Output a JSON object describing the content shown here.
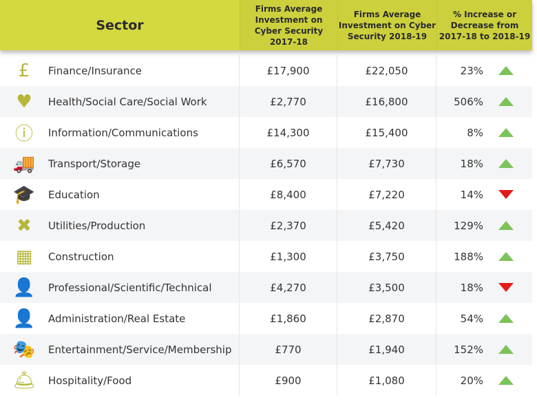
{
  "header": {
    "sector": "Sector",
    "col1": "Firms Average Investment on Cyber Security 2017-18",
    "col2": "Firms Average Investment on Cyber Security 2018-19",
    "col3": "% Increase or Decrease from 2017-18 to 2018-19"
  },
  "colors": {
    "header": "#d4d841",
    "icon": "#b6b63a",
    "up": "#7cc35a",
    "down": "#e21b1b"
  },
  "rows": [
    {
      "icon": "pound-coin-icon",
      "glyph": "£",
      "sector": "Finance/Insurance",
      "y1": "£17,900",
      "y2": "£22,050",
      "pct": "23%",
      "dir": "up"
    },
    {
      "icon": "heart-cross-icon",
      "glyph": "♥",
      "sector": "Health/Social Care/Social Work",
      "y1": "£2,770",
      "y2": "£16,800",
      "pct": "506%",
      "dir": "up"
    },
    {
      "icon": "info-icon",
      "glyph": "ⓘ",
      "sector": "Information/Communications",
      "y1": "£14,300",
      "y2": "£15,400",
      "pct": "8%",
      "dir": "up"
    },
    {
      "icon": "truck-icon",
      "glyph": "🚚",
      "sector": "Transport/Storage",
      "y1": "£6,570",
      "y2": "£7,730",
      "pct": "18%",
      "dir": "up"
    },
    {
      "icon": "graduation-cap-icon",
      "glyph": "🎓",
      "sector": "Education",
      "y1": "£8,400",
      "y2": "£7,220",
      "pct": "14%",
      "dir": "down"
    },
    {
      "icon": "tools-icon",
      "glyph": "✖",
      "sector": "Utilities/Production",
      "y1": "£2,370",
      "y2": "£5,420",
      "pct": "129%",
      "dir": "up"
    },
    {
      "icon": "brick-wall-icon",
      "glyph": "▦",
      "sector": "Construction",
      "y1": "£1,300",
      "y2": "£3,750",
      "pct": "188%",
      "dir": "up"
    },
    {
      "icon": "businessman-icon",
      "glyph": "👤",
      "sector": "Professional/Scientific/Technical",
      "y1": "£4,270",
      "y2": "£3,500",
      "pct": "18%",
      "dir": "down"
    },
    {
      "icon": "person-gear-icon",
      "glyph": "👤",
      "sector": "Administration/Real Estate",
      "y1": "£1,860",
      "y2": "£2,870",
      "pct": "54%",
      "dir": "up"
    },
    {
      "icon": "theatre-masks-icon",
      "glyph": "🎭",
      "sector": "Entertainment/Service/Membership",
      "y1": "£770",
      "y2": "£1,940",
      "pct": "152%",
      "dir": "up"
    },
    {
      "icon": "service-bell-icon",
      "glyph": "🛎",
      "sector": "Hospitality/Food",
      "y1": "£900",
      "y2": "£1,080",
      "pct": "20%",
      "dir": "up"
    }
  ]
}
